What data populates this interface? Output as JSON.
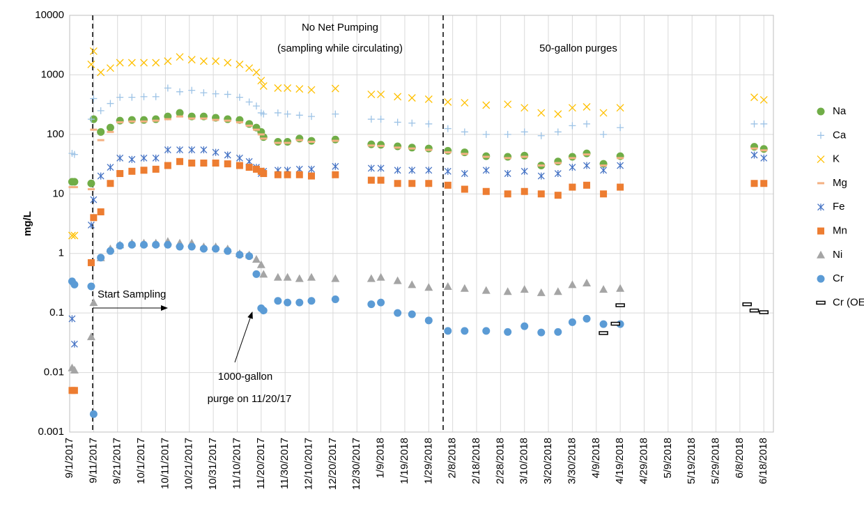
{
  "chart_data": {
    "type": "scatter",
    "y_label": "mg/L",
    "log_y": true,
    "grid": true,
    "legend": "right",
    "annotations": [
      "No Net Pumping",
      "(sampling while circulating)",
      "50-gallon purges",
      "Start Sampling",
      "1000-gallon",
      "purge on 11/20/17"
    ],
    "xlim": [
      "9/1/2017",
      "6/22/2018"
    ],
    "xticks": [
      "9/1/2017",
      "9/11/2017",
      "9/21/2017",
      "10/1/2017",
      "10/11/2017",
      "10/21/2017",
      "10/31/2017",
      "11/10/2017",
      "11/20/2017",
      "11/30/2017",
      "12/10/2017",
      "12/20/2017",
      "12/30/2017",
      "1/9/2018",
      "1/19/2018",
      "1/29/2018",
      "2/8/2018",
      "2/18/2018",
      "2/28/2018",
      "3/10/2018",
      "3/20/2018",
      "3/30/2018",
      "4/9/2018",
      "4/19/2018",
      "4/29/2018",
      "5/9/2018",
      "5/19/2018",
      "5/29/2018",
      "6/8/2018",
      "6/18/2018"
    ],
    "ylim": [
      0.001,
      10000
    ],
    "yticks": [
      0.001,
      0.01,
      0.1,
      1,
      10,
      100,
      1000,
      10000
    ],
    "x": [
      "9/2/2017",
      "9/3/2017",
      "9/10/2017",
      "9/11/2017",
      "9/14/2017",
      "9/18/2017",
      "9/22/2017",
      "9/27/2017",
      "10/2/2017",
      "10/7/2017",
      "10/12/2017",
      "10/17/2017",
      "10/22/2017",
      "10/27/2017",
      "11/1/2017",
      "11/6/2017",
      "11/11/2017",
      "11/15/2017",
      "11/18/2017",
      "11/20/2017",
      "11/21/2017",
      "11/27/2017",
      "12/1/2017",
      "12/6/2017",
      "12/11/2017",
      "12/21/2017",
      "1/5/2018",
      "1/9/2018",
      "1/16/2018",
      "1/22/2018",
      "1/29/2018",
      "2/6/2018",
      "2/13/2018",
      "2/22/2018",
      "3/3/2018",
      "3/10/2018",
      "3/17/2018",
      "3/24/2018",
      "3/30/2018",
      "4/5/2018",
      "4/12/2018",
      "4/19/2018",
      "6/14/2018",
      "6/18/2018"
    ],
    "series": [
      {
        "name": "Na",
        "color": "#70ad47",
        "marker": "circle",
        "values": [
          16,
          16,
          15,
          180,
          110,
          130,
          170,
          175,
          175,
          180,
          200,
          230,
          200,
          200,
          190,
          180,
          175,
          150,
          130,
          110,
          90,
          75,
          75,
          85,
          78,
          82,
          68,
          67,
          63,
          60,
          58,
          53,
          50,
          43,
          42,
          44,
          30,
          35,
          42,
          48,
          32,
          43,
          62,
          57
        ]
      },
      {
        "name": "Ca",
        "color": "#9dc3e6",
        "marker": "plus",
        "values": [
          48,
          46,
          180,
          400,
          250,
          330,
          420,
          420,
          430,
          430,
          600,
          520,
          550,
          500,
          480,
          470,
          420,
          350,
          300,
          230,
          220,
          230,
          220,
          210,
          200,
          220,
          180,
          180,
          160,
          155,
          150,
          125,
          110,
          100,
          100,
          110,
          95,
          110,
          140,
          150,
          100,
          130,
          150,
          150
        ]
      },
      {
        "name": "K",
        "color": "#ffc000",
        "marker": "x",
        "values": [
          2,
          2,
          1500,
          2500,
          1100,
          1300,
          1600,
          1600,
          1600,
          1600,
          1700,
          2000,
          1800,
          1700,
          1700,
          1600,
          1500,
          1300,
          1100,
          800,
          650,
          600,
          600,
          580,
          560,
          590,
          470,
          470,
          430,
          410,
          390,
          350,
          340,
          310,
          320,
          280,
          230,
          220,
          280,
          290,
          230,
          280,
          420,
          380
        ]
      },
      {
        "name": "Mg",
        "color": "#f4b183",
        "marker": "dash",
        "values": [
          13,
          13,
          12,
          120,
          80,
          110,
          160,
          165,
          165,
          170,
          180,
          200,
          185,
          185,
          175,
          170,
          160,
          140,
          120,
          100,
          85,
          72,
          72,
          80,
          75,
          78,
          65,
          64,
          60,
          58,
          55,
          50,
          47,
          42,
          40,
          42,
          30,
          33,
          40,
          46,
          30,
          40,
          58,
          54
        ]
      },
      {
        "name": "Fe",
        "color": "#4472c4",
        "marker": "star",
        "values": [
          0.08,
          0.03,
          3,
          8,
          20,
          28,
          40,
          38,
          40,
          40,
          55,
          55,
          55,
          55,
          50,
          45,
          40,
          35,
          28,
          22,
          24,
          25,
          25,
          26,
          26,
          29,
          27,
          27,
          25,
          25,
          25,
          24,
          22,
          25,
          22,
          24,
          20,
          22,
          28,
          30,
          25,
          30,
          45,
          40
        ]
      },
      {
        "name": "Mn",
        "color": "#ed7d31",
        "marker": "square",
        "values": [
          0.005,
          0.005,
          0.7,
          4,
          5,
          15,
          22,
          24,
          25,
          26,
          30,
          35,
          33,
          33,
          33,
          32,
          30,
          28,
          26,
          24,
          22,
          21,
          21,
          21,
          20,
          21,
          17,
          17,
          15,
          15,
          15,
          14,
          12,
          11,
          10,
          11,
          10,
          9.5,
          13,
          14,
          10,
          13,
          15,
          15
        ]
      },
      {
        "name": "Ni",
        "color": "#a5a5a5",
        "marker": "triangle",
        "values": [
          0.012,
          0.011,
          0.04,
          0.15,
          0.85,
          1.2,
          1.4,
          1.5,
          1.5,
          1.5,
          1.6,
          1.5,
          1.5,
          1.3,
          1.3,
          1.2,
          1.0,
          0.95,
          0.8,
          0.65,
          0.45,
          0.4,
          0.4,
          0.38,
          0.4,
          0.38,
          0.38,
          0.4,
          0.35,
          0.3,
          0.27,
          0.28,
          0.26,
          0.24,
          0.23,
          0.25,
          0.22,
          0.23,
          0.3,
          0.32,
          0.25,
          0.26,
          null,
          null
        ]
      },
      {
        "name": "Cr",
        "color": "#5b9bd5",
        "marker": "circle",
        "values": [
          0.34,
          0.3,
          0.28,
          0.002,
          0.85,
          1.1,
          1.35,
          1.4,
          1.4,
          1.4,
          1.4,
          1.3,
          1.3,
          1.2,
          1.2,
          1.1,
          0.95,
          0.9,
          0.45,
          0.12,
          0.11,
          0.16,
          0.15,
          0.15,
          0.16,
          0.17,
          0.14,
          0.15,
          0.1,
          0.095,
          0.075,
          0.05,
          0.05,
          0.05,
          0.048,
          0.06,
          0.047,
          0.048,
          0.07,
          0.08,
          0.065,
          0.065,
          null,
          null
        ]
      },
      {
        "name": "Cr (OES)",
        "color": "#000000",
        "marker": "bar",
        "x": [
          "4/12/2018",
          "4/17/2018",
          "4/19/2018",
          "6/11/2018",
          "6/14/2018",
          "6/18/2018"
        ],
        "values": [
          0.046,
          0.066,
          0.135,
          0.14,
          0.11,
          0.103
        ]
      }
    ]
  }
}
